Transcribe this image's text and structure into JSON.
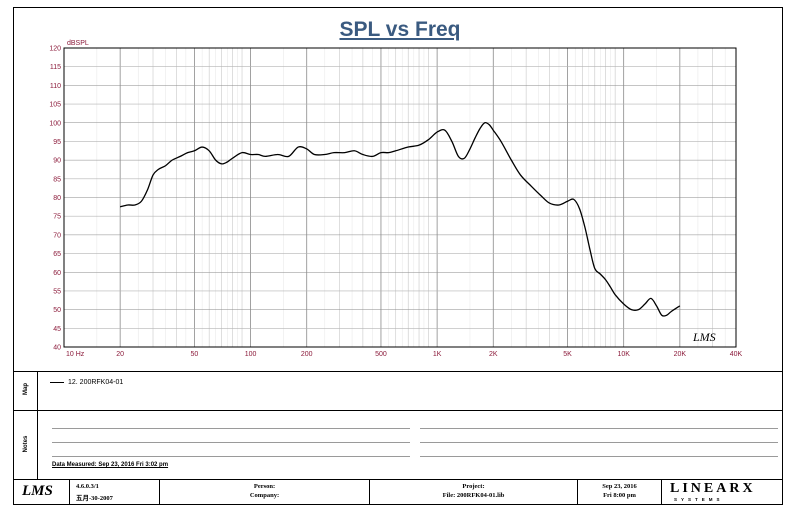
{
  "chart_data": {
    "type": "line",
    "title": "SPL vs Freq",
    "ylabel": "dBSPL",
    "xlabel": "",
    "x_scale": "log",
    "xlim": [
      10,
      40000
    ],
    "ylim": [
      40,
      120
    ],
    "y_ticks": [
      40,
      45,
      50,
      55,
      60,
      65,
      70,
      75,
      80,
      85,
      90,
      95,
      100,
      105,
      110,
      115,
      120
    ],
    "x_ticks": [
      {
        "value": 10,
        "label": "10  Hz"
      },
      {
        "value": 20,
        "label": "20"
      },
      {
        "value": 50,
        "label": "50"
      },
      {
        "value": 100,
        "label": "100"
      },
      {
        "value": 200,
        "label": "200"
      },
      {
        "value": 500,
        "label": "500"
      },
      {
        "value": 1000,
        "label": "1K"
      },
      {
        "value": 2000,
        "label": "2K"
      },
      {
        "value": 5000,
        "label": "5K"
      },
      {
        "value": 10000,
        "label": "10K"
      },
      {
        "value": 20000,
        "label": "20K"
      },
      {
        "value": 40000,
        "label": "40K"
      }
    ],
    "grid": true,
    "series": [
      {
        "name": "12. 200RFK04-01",
        "color": "#000000",
        "x": [
          20,
          22,
          24,
          26,
          28,
          30,
          32,
          35,
          38,
          42,
          46,
          50,
          55,
          60,
          65,
          70,
          75,
          80,
          90,
          100,
          110,
          120,
          140,
          160,
          180,
          200,
          220,
          250,
          280,
          320,
          360,
          400,
          450,
          500,
          550,
          600,
          700,
          800,
          900,
          1000,
          1100,
          1200,
          1300,
          1400,
          1500,
          1600,
          1700,
          1800,
          1900,
          2000,
          2200,
          2500,
          2800,
          3200,
          3600,
          4000,
          4500,
          5000,
          5400,
          5800,
          6200,
          6600,
          7000,
          7500,
          8000,
          8500,
          9000,
          10000,
          11000,
          12000,
          13000,
          14000,
          15000,
          16000,
          17000,
          18000,
          20000
        ],
        "y": [
          77.5,
          78,
          78,
          79,
          82,
          86,
          87.5,
          88.5,
          90,
          91,
          92,
          92.5,
          93.5,
          92.5,
          90,
          89,
          89.5,
          90.5,
          92,
          91.5,
          91.5,
          91,
          91.5,
          91,
          93.5,
          93,
          91.5,
          91.5,
          92,
          92,
          92.5,
          91.5,
          91,
          92,
          92,
          92.5,
          93.5,
          94,
          95.5,
          97.5,
          98,
          95,
          91,
          90.5,
          93,
          96,
          98.5,
          100,
          99.5,
          98,
          95,
          90,
          86,
          83,
          80.5,
          78.5,
          78,
          79,
          79.5,
          77,
          72,
          66,
          61,
          59.5,
          58,
          56,
          54,
          51.5,
          50,
          50,
          51.5,
          53,
          51,
          48.5,
          48.5,
          49.5,
          51
        ]
      }
    ],
    "annotation": "LMS"
  },
  "legend": {
    "entry": "12. 200RFK04-01"
  },
  "side_labels": {
    "map": "Map",
    "notes": "Notes"
  },
  "notes": {
    "data_measured": "Data Measured: Sep 23, 2016  Fri  3:02 pm"
  },
  "footer": {
    "logo": "LMS",
    "version": "4.6.0.3/1",
    "version_date": "五月-30-2007",
    "person_label": "Person:",
    "company_label": "Company:",
    "project_label": "Project:",
    "file_label": "File: 200RFK04-01.lib",
    "date": "Sep 23, 2016",
    "time": "Fri  8:00 pm",
    "brand": "LINEARX",
    "brand_sub": "SYSTEMS"
  }
}
